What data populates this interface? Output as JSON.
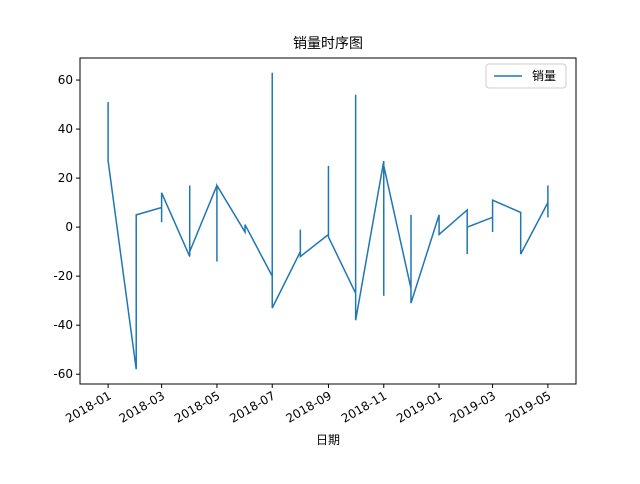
{
  "chart_data": {
    "type": "line",
    "title": "销量时序图",
    "xlabel": "日期",
    "x": [
      "2018-01",
      "2018-01",
      "2018-02",
      "2018-02",
      "2018-03",
      "2018-03",
      "2018-03",
      "2018-04",
      "2018-04",
      "2018-04",
      "2018-05",
      "2018-05",
      "2018-05",
      "2018-06",
      "2018-06",
      "2018-07",
      "2018-07",
      "2018-07",
      "2018-08",
      "2018-08",
      "2018-08",
      "2018-09",
      "2018-09",
      "2018-09",
      "2018-10",
      "2018-10",
      "2018-10",
      "2018-11",
      "2018-11",
      "2018-11",
      "2018-12",
      "2018-12",
      "2018-12",
      "2019-01",
      "2019-01",
      "2019-02",
      "2019-02",
      "2019-02",
      "2019-03",
      "2019-03",
      "2019-03",
      "2019-04",
      "2019-04",
      "2019-04",
      "2019-05",
      "2019-05",
      "2019-05"
    ],
    "series": [
      {
        "name": "销量",
        "color": "#1f77b4",
        "values": [
          51,
          27,
          -58,
          5,
          8,
          2,
          14,
          -12,
          17,
          -10,
          17,
          -14,
          17,
          -2,
          1,
          -20,
          63,
          -33,
          -10,
          -1,
          -12,
          -3,
          25,
          -4,
          -27,
          54,
          -38,
          27,
          -28,
          25,
          -25,
          5,
          -31,
          5,
          -3,
          7,
          -11,
          0,
          4,
          -2,
          11,
          6,
          4,
          -11,
          10,
          4,
          17
        ]
      }
    ],
    "xlim": [
      "2017-12",
      "2019-06"
    ],
    "xticks": [
      "2018-01",
      "2018-03",
      "2018-05",
      "2018-07",
      "2018-09",
      "2018-11",
      "2019-01",
      "2019-03",
      "2019-05"
    ],
    "ylim": [
      -64,
      69
    ],
    "yticks": [
      -60,
      -40,
      -20,
      0,
      20,
      40,
      60
    ],
    "legend": "upper right"
  }
}
